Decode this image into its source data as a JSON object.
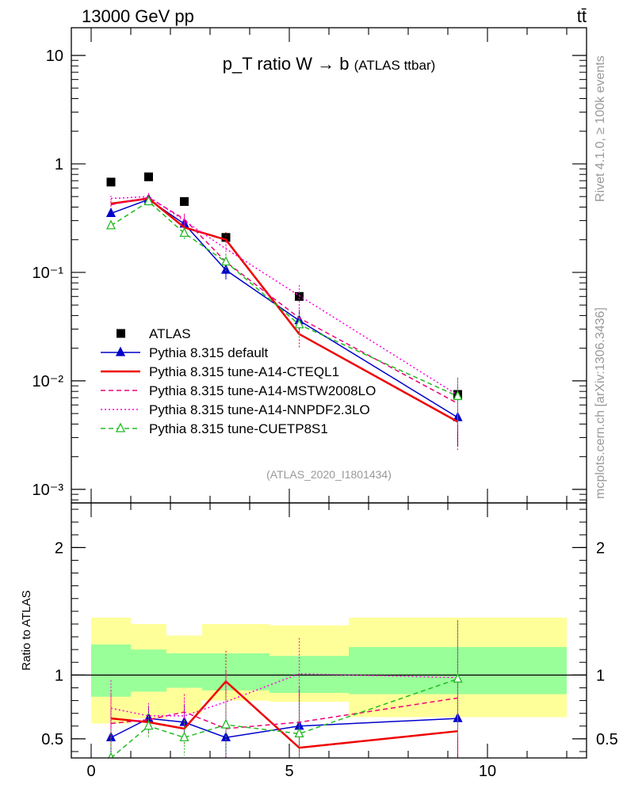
{
  "header": {
    "left": "13000 GeV pp",
    "right": "tt̄"
  },
  "side": {
    "rivet": "Rivet 4.1.0, ≥ 100k events",
    "mcplots": "mcplots.cern.ch [arXiv:1306.3436]"
  },
  "chart_data": [
    {
      "type": "line",
      "panel": "main",
      "title": "p_T ratio W → b",
      "title_note": "(ATLAS ttbar)",
      "analysis_label": "(ATLAS_2020_I1801434)",
      "yscale": "log",
      "ylim": [
        0.00075,
        18
      ],
      "xlim": [
        -0.5,
        12.5
      ],
      "y_tick_labels": [
        "10",
        "1",
        "10⁻¹",
        "10⁻²",
        "10⁻³"
      ],
      "legend_position": "lower-left",
      "series": [
        {
          "name": "ATLAS",
          "color": "#000000",
          "style": "square",
          "x": [
            0.5,
            1.45,
            2.35,
            3.4,
            5.25,
            9.25
          ],
          "values": [
            0.68,
            0.76,
            0.45,
            0.21,
            0.06,
            0.0075
          ]
        },
        {
          "name": "Pythia 8.315 default",
          "color": "#0000cc",
          "style": "solid-triangle",
          "x": [
            0.5,
            1.45,
            2.35,
            3.4,
            5.25,
            9.25
          ],
          "values": [
            0.35,
            0.47,
            0.28,
            0.105,
            0.036,
            0.0046
          ]
        },
        {
          "name": "Pythia 8.315 tune-A14-CTEQL1",
          "color": "#ee0000",
          "style": "thick",
          "x": [
            0.5,
            1.45,
            2.35,
            3.4,
            5.25,
            9.25
          ],
          "values": [
            0.43,
            0.48,
            0.26,
            0.2,
            0.027,
            0.0042
          ]
        },
        {
          "name": "Pythia 8.315 tune-A14-MSTW2008LO",
          "color": "#ee0077",
          "style": "dashed",
          "x": [
            0.5,
            1.45,
            2.35,
            3.4,
            5.25,
            9.25
          ],
          "values": [
            0.42,
            0.49,
            0.31,
            0.125,
            0.038,
            0.0062
          ]
        },
        {
          "name": "Pythia 8.315 tune-A14-NNPDF2.3LO",
          "color": "#ff00dd",
          "style": "dotted",
          "x": [
            0.5,
            1.45,
            2.35,
            3.4,
            5.25,
            9.25
          ],
          "values": [
            0.48,
            0.5,
            0.3,
            0.165,
            0.061,
            0.0074
          ]
        },
        {
          "name": "Pythia 8.315 tune-CUETP8S1",
          "color": "#22bb22",
          "style": "dashed-open-triangle",
          "x": [
            0.5,
            1.45,
            2.35,
            3.4,
            5.25,
            9.25
          ],
          "values": [
            0.27,
            0.45,
            0.23,
            0.125,
            0.033,
            0.0072
          ]
        }
      ]
    },
    {
      "type": "line",
      "panel": "ratio",
      "ylabel": "Ratio to ATLAS",
      "ylim": [
        0.35,
        2.35
      ],
      "xlim": [
        -0.5,
        12.5
      ],
      "y_tick_labels": [
        "0.5",
        "1",
        "2"
      ],
      "x_tick_labels": [
        "0",
        "5",
        "10"
      ],
      "reference": 1,
      "bins": [
        [
          0,
          1
        ],
        [
          1,
          1.9
        ],
        [
          1.9,
          2.8
        ],
        [
          2.8,
          4.5
        ],
        [
          4.5,
          6.5
        ],
        [
          6.5,
          12
        ]
      ],
      "band_inner": [
        [
          0.83,
          1.24
        ],
        [
          0.87,
          1.2
        ],
        [
          0.9,
          1.17
        ],
        [
          0.88,
          1.17
        ],
        [
          0.86,
          1.15
        ],
        [
          0.85,
          1.22
        ]
      ],
      "band_outer": [
        [
          0.62,
          1.45
        ],
        [
          0.66,
          1.4
        ],
        [
          0.7,
          1.31
        ],
        [
          0.8,
          1.4
        ],
        [
          0.79,
          1.39
        ],
        [
          0.67,
          1.45
        ]
      ],
      "series": [
        {
          "name": "Pythia 8.315 default",
          "values": [
            0.51,
            0.66,
            0.63,
            0.51,
            0.6,
            0.66
          ]
        },
        {
          "name": "Pythia 8.315 tune-A14-CTEQL1",
          "values": [
            0.66,
            0.63,
            0.58,
            0.95,
            0.43,
            0.56
          ]
        },
        {
          "name": "Pythia 8.315 tune-A14-MSTW2008LO",
          "values": [
            0.62,
            0.65,
            0.71,
            0.58,
            0.63,
            0.82
          ]
        },
        {
          "name": "Pythia 8.315 tune-A14-NNPDF2.3LO",
          "values": [
            0.74,
            0.68,
            0.68,
            0.79,
            1.01,
            0.98
          ]
        },
        {
          "name": "Pythia 8.315 tune-CUETP8S1",
          "values": [
            0.35,
            0.6,
            0.51,
            0.61,
            0.54,
            0.97
          ]
        }
      ]
    }
  ]
}
